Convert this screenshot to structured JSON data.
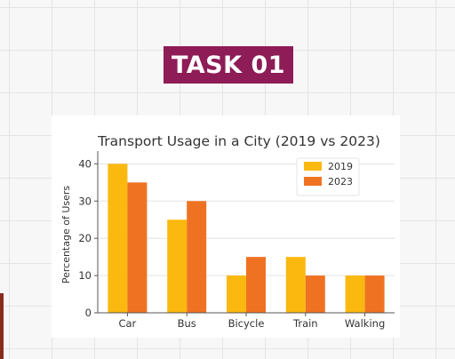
{
  "badge": {
    "label": "TASK 01"
  },
  "colors": {
    "badge_bg": "#8e1c56",
    "series_2019": "#fbb80f",
    "series_2023": "#ef7222"
  },
  "chart_data": {
    "type": "bar",
    "title": "Transport Usage in a City (2019 vs 2023)",
    "xlabel": "",
    "ylabel": "Percentage of Users",
    "categories": [
      "Car",
      "Bus",
      "Bicycle",
      "Train",
      "Walking"
    ],
    "series": [
      {
        "name": "2019",
        "color": "#fbb80f",
        "values": [
          40,
          25,
          10,
          15,
          10
        ]
      },
      {
        "name": "2023",
        "color": "#ef7222",
        "values": [
          35,
          30,
          15,
          10,
          10
        ]
      }
    ],
    "ylim": [
      0,
      42
    ],
    "yticks": [
      0,
      10,
      20,
      30,
      40
    ],
    "grid": true,
    "legend": "top-right"
  }
}
